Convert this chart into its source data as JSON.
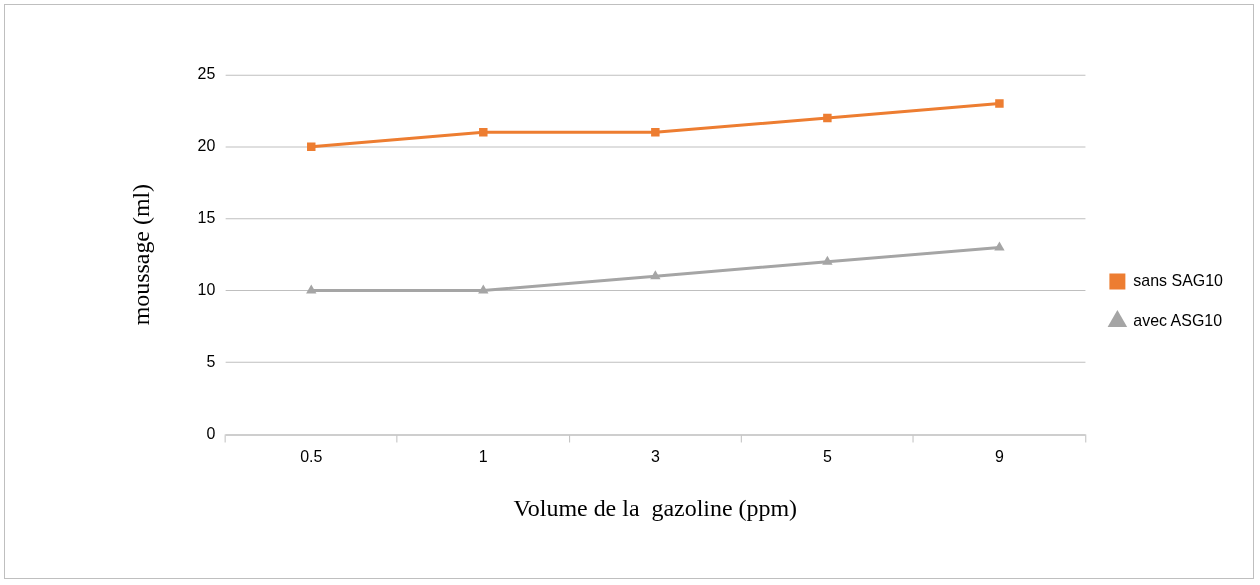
{
  "chart_data": {
    "type": "line",
    "xlabel": "Volume de la  gazoline (ppm)",
    "ylabel": "moussage (ml)",
    "categories": [
      "0.5",
      "1",
      "3",
      "5",
      "9"
    ],
    "series": [
      {
        "name": "sans SAG10",
        "color": "#ed7d31",
        "marker": "square",
        "values": [
          20,
          21,
          21,
          22,
          23
        ]
      },
      {
        "name": "avec ASG10",
        "color": "#a5a5a5",
        "marker": "triangle",
        "values": [
          10,
          10,
          11,
          12,
          13
        ]
      }
    ],
    "ylim": [
      0,
      25
    ],
    "yticks": [
      0,
      5,
      10,
      15,
      20,
      25
    ],
    "grid": "y",
    "legend": "right",
    "line_style": "solid"
  }
}
